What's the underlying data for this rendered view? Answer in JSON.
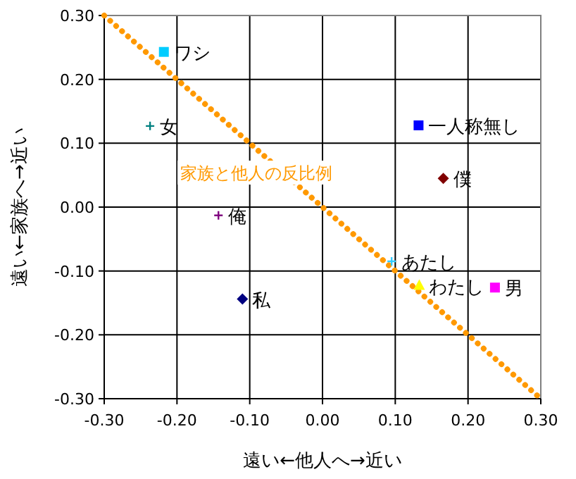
{
  "chart_data": {
    "type": "scatter",
    "xlabel": "遠い←他人へ→近い",
    "ylabel": "遠い←家族へ→近い",
    "xlim": [
      -0.3,
      0.3
    ],
    "ylim": [
      -0.3,
      0.3
    ],
    "xticks": [
      {
        "value": -0.3,
        "label": "-0.30"
      },
      {
        "value": -0.2,
        "label": "-0.20"
      },
      {
        "value": -0.1,
        "label": "-0.10"
      },
      {
        "value": 0,
        "label": "0.00"
      },
      {
        "value": 0.1,
        "label": "0.10"
      },
      {
        "value": 0.2,
        "label": "0.20"
      },
      {
        "value": 0.3,
        "label": "0.30"
      }
    ],
    "yticks": [
      {
        "value": -0.3,
        "label": "-0.30"
      },
      {
        "value": -0.2,
        "label": "-0.20"
      },
      {
        "value": -0.1,
        "label": "-0.10"
      },
      {
        "value": 0,
        "label": "0.00"
      },
      {
        "value": 0.1,
        "label": "0.10"
      },
      {
        "value": 0.2,
        "label": "0.20"
      },
      {
        "value": 0.3,
        "label": "0.30"
      }
    ],
    "grid": true,
    "legend": false,
    "series": [
      {
        "type": "line",
        "color": "#ff9900",
        "line_style": "dotted",
        "x": [
          -0.3,
          0.3
        ],
        "values": [
          0.3,
          -0.3
        ]
      },
      {
        "name": "ワシ",
        "color": "#00ccff",
        "marker": "square",
        "x": [
          -0.218
        ],
        "values": [
          0.243
        ]
      },
      {
        "name": "女",
        "color": "#008080",
        "marker": "cross",
        "x": [
          -0.237
        ],
        "values": [
          0.127
        ]
      },
      {
        "name": "俺",
        "color": "#800080",
        "marker": "cross",
        "x": [
          -0.143
        ],
        "values": [
          -0.013
        ]
      },
      {
        "name": "私",
        "color": "#000080",
        "marker": "diamond",
        "x": [
          -0.11
        ],
        "values": [
          -0.144
        ]
      },
      {
        "name": "一人称無し",
        "color": "#0000ff",
        "marker": "square",
        "x": [
          0.132
        ],
        "values": [
          0.128
        ]
      },
      {
        "name": "僕",
        "color": "#800000",
        "marker": "diamond",
        "x": [
          0.166
        ],
        "values": [
          0.045
        ]
      },
      {
        "name": "あたし",
        "color": "#33ccff",
        "marker": "cross",
        "x": [
          0.095
        ],
        "values": [
          -0.085
        ]
      },
      {
        "name": "わたし",
        "color": "#ffff00",
        "marker": "triangle",
        "x": [
          0.133
        ],
        "values": [
          -0.123
        ]
      },
      {
        "name": "男",
        "color": "#ff00ff",
        "marker": "square",
        "x": [
          0.237
        ],
        "values": [
          -0.126
        ]
      }
    ],
    "annotations": [
      "家族と他人の反比例"
    ]
  }
}
